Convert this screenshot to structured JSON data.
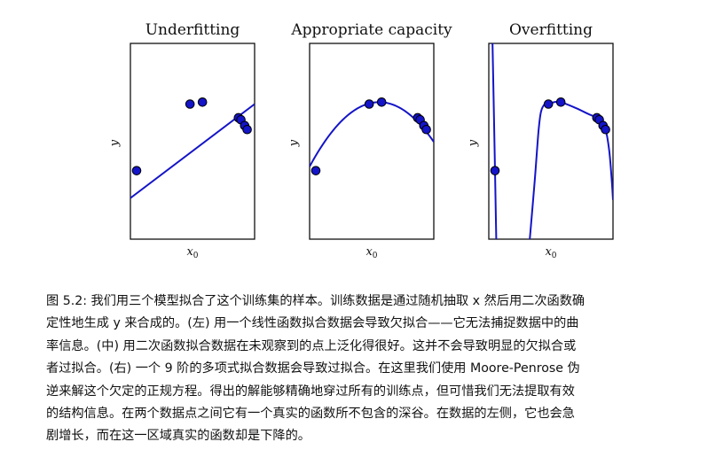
{
  "chart_data": [
    {
      "type": "scatter",
      "title": "Underfitting",
      "xlabel": "x",
      "xlabel_sub": "0",
      "ylabel": "y",
      "xlim": [
        0,
        1
      ],
      "ylim": [
        0,
        1
      ],
      "points": [
        {
          "x": 0.05,
          "y": 0.35
        },
        {
          "x": 0.48,
          "y": 0.69
        },
        {
          "x": 0.58,
          "y": 0.7
        },
        {
          "x": 0.87,
          "y": 0.62
        },
        {
          "x": 0.89,
          "y": 0.61
        },
        {
          "x": 0.92,
          "y": 0.58
        },
        {
          "x": 0.94,
          "y": 0.56
        }
      ],
      "fit": {
        "model": "linear",
        "coef": [
          0.48,
          0.21
        ]
      },
      "colors": {
        "points": "#1414c8",
        "line": "#1414c8"
      }
    },
    {
      "type": "scatter",
      "title": "Appropriate capacity",
      "xlabel": "x",
      "xlabel_sub": "0",
      "ylabel": "y",
      "xlim": [
        0,
        1
      ],
      "ylim": [
        0,
        1
      ],
      "points": [
        {
          "x": 0.05,
          "y": 0.35
        },
        {
          "x": 0.48,
          "y": 0.69
        },
        {
          "x": 0.58,
          "y": 0.7
        },
        {
          "x": 0.87,
          "y": 0.62
        },
        {
          "x": 0.89,
          "y": 0.61
        },
        {
          "x": 0.92,
          "y": 0.58
        },
        {
          "x": 0.94,
          "y": 0.56
        }
      ],
      "fit": {
        "model": "quadratic",
        "vertex_x": 0.56,
        "vertex_y": 0.7,
        "a": -1.05
      },
      "colors": {
        "points": "#1414c8",
        "line": "#1414c8"
      }
    },
    {
      "type": "scatter",
      "title": "Overfitting",
      "xlabel": "x",
      "xlabel_sub": "0",
      "ylabel": "y",
      "xlim": [
        0,
        1
      ],
      "ylim": [
        0,
        1
      ],
      "points": [
        {
          "x": 0.05,
          "y": 0.35
        },
        {
          "x": 0.48,
          "y": 0.69
        },
        {
          "x": 0.58,
          "y": 0.7
        },
        {
          "x": 0.87,
          "y": 0.62
        },
        {
          "x": 0.89,
          "y": 0.61
        },
        {
          "x": 0.92,
          "y": 0.58
        },
        {
          "x": 0.94,
          "y": 0.56
        }
      ],
      "fit": {
        "model": "degree-9 polynomial",
        "curve": [
          [
            0.03,
            1.0
          ],
          [
            0.05,
            0.35
          ],
          [
            0.06,
            0.0
          ],
          [
            0.33,
            0.0
          ],
          [
            0.37,
            0.3
          ],
          [
            0.4,
            0.55
          ],
          [
            0.42,
            0.65
          ],
          [
            0.45,
            0.69
          ],
          [
            0.48,
            0.69
          ],
          [
            0.53,
            0.7
          ],
          [
            0.58,
            0.7
          ],
          [
            0.7,
            0.67
          ],
          [
            0.8,
            0.64
          ],
          [
            0.87,
            0.62
          ],
          [
            0.9,
            0.6
          ],
          [
            0.94,
            0.56
          ],
          [
            0.97,
            0.45
          ],
          [
            0.99,
            0.3
          ],
          [
            1.0,
            0.2
          ]
        ]
      },
      "colors": {
        "points": "#1414c8",
        "line": "#1414c8"
      }
    }
  ],
  "caption": {
    "lines": [
      "图 5.2: 我们用三个模型拟合了这个训练集的样本。训练数据是通过随机抽取 x 然后用二次函数确",
      "定性地生成 y 来合成的。(左) 用一个线性函数拟合数据会导致欠拟合——它无法捕捉数据中的曲",
      "率信息。(中) 用二次函数拟合数据在未观察到的点上泛化得很好。这并不会导致明显的欠拟合或",
      "者过拟合。(右) 一个 9 阶的多项式拟合数据会导致过拟合。在这里我们使用 Moore-Penrose 伪",
      "逆来解这个欠定的正规方程。得出的解能够精确地穿过所有的训练点，但可惜我们无法提取有效",
      "的结构信息。在两个数据点之间它有一个真实的函数所不包含的深谷。在数据的左侧，它也会急",
      "剧增长，而在这一区域真实的函数却是下降的。"
    ]
  }
}
